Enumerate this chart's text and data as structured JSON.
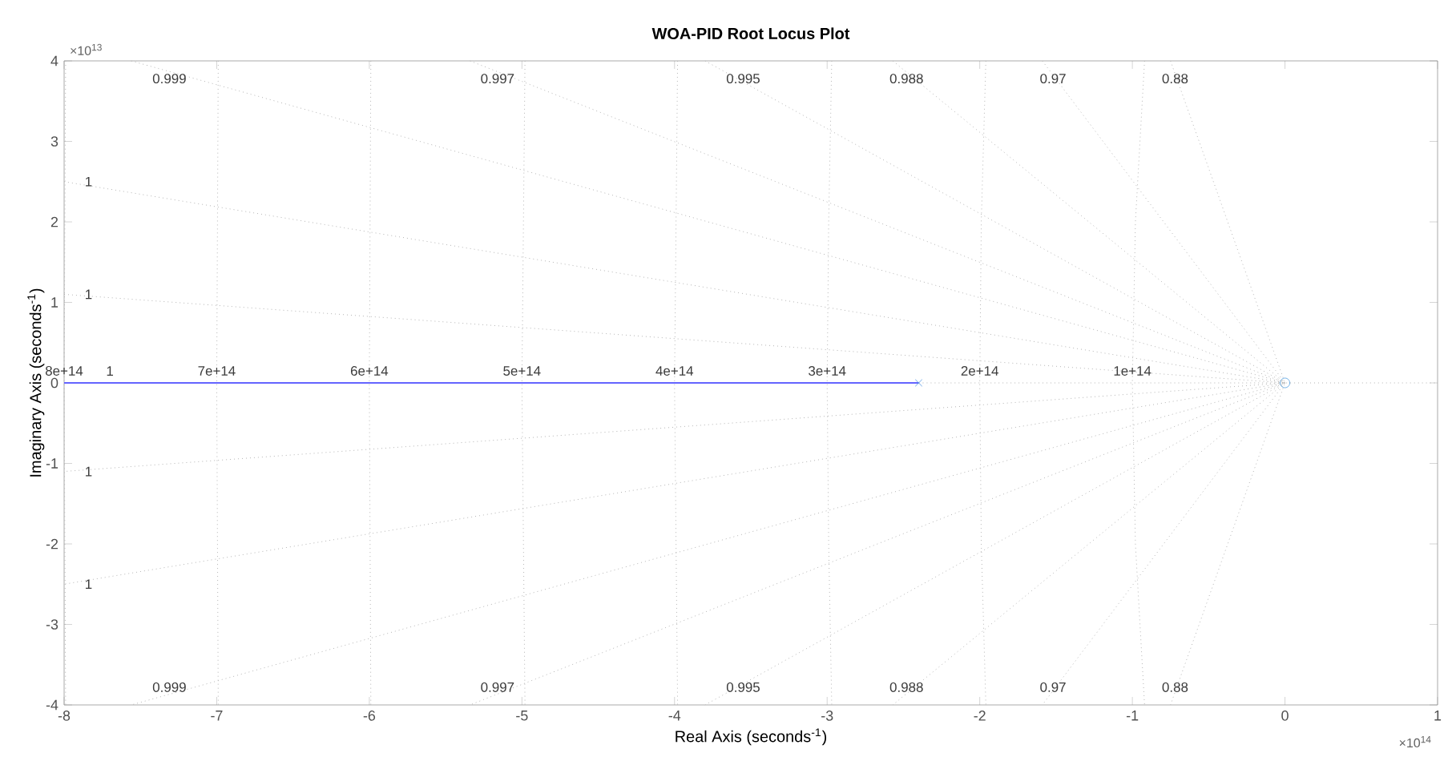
{
  "chart_data": {
    "type": "line",
    "title": "WOA-PID Root Locus Plot",
    "xlabel": "Real Axis (seconds$^{-1}$)",
    "ylabel": "Imaginary Axis (seconds$^{-1}$)",
    "xlim": [
      -8,
      1
    ],
    "ylim": [
      -4,
      4
    ],
    "xticks": [
      -8,
      -7,
      -6,
      -5,
      -4,
      -3,
      -2,
      -1,
      0,
      1
    ],
    "yticks": [
      -4,
      -3,
      -2,
      -1,
      0,
      1,
      2,
      3,
      4
    ],
    "series": [
      {
        "color": "#b4b4b4",
        "line_style": "dotted",
        "x": [
          -2.4,
          1
        ],
        "values": [
          0,
          0
        ]
      },
      {
        "color": "#b4b4b4",
        "line_style": "dotted",
        "x": [
          -7.56,
          0,
          -7.56
        ],
        "values": [
          4,
          0,
          -4
        ]
      },
      {
        "color": "#b4b4b4",
        "line_style": "dotted",
        "x": [
          -5.34,
          0,
          -5.34
        ],
        "values": [
          4,
          0,
          -4
        ]
      },
      {
        "color": "#b4b4b4",
        "line_style": "dotted",
        "x": [
          -3.8,
          0,
          -3.8
        ],
        "values": [
          4,
          0,
          -4
        ]
      },
      {
        "color": "#b4b4b4",
        "line_style": "dotted",
        "x": [
          -2.57,
          0,
          -2.57
        ],
        "values": [
          4,
          0,
          -4
        ]
      },
      {
        "color": "#b4b4b4",
        "line_style": "dotted",
        "x": [
          -1.59,
          0,
          -1.59
        ],
        "values": [
          4,
          0,
          -4
        ]
      },
      {
        "color": "#b4b4b4",
        "line_style": "dotted",
        "x": [
          -0.75,
          0,
          -0.75
        ],
        "values": [
          4,
          0,
          -4
        ]
      },
      {
        "color": "#b4b4b4",
        "line_style": "dotted",
        "x": [
          -8,
          0,
          -8
        ],
        "values": [
          2.5,
          0,
          -2.5
        ]
      },
      {
        "color": "#b4b4b4",
        "line_style": "dotted",
        "x": [
          -8,
          0,
          -8
        ],
        "values": [
          1.1,
          0,
          -1.1
        ]
      },
      {
        "color": "#b4b4b4",
        "line_style": "dotted",
        "x": [
          -0.92,
          -0.98,
          -1,
          -0.98,
          -0.92
        ],
        "values": [
          4,
          2,
          0,
          -2,
          -4
        ]
      },
      {
        "color": "#b4b4b4",
        "line_style": "dotted",
        "x": [
          -1.96,
          -1.99,
          -2,
          -1.99,
          -1.96
        ],
        "values": [
          4,
          2,
          0,
          -2,
          -4
        ]
      },
      {
        "color": "#b4b4b4",
        "line_style": "dotted",
        "x": [
          -2.97,
          -2.99,
          -3,
          -2.99,
          -2.97
        ],
        "values": [
          4,
          2,
          0,
          -2,
          -4
        ]
      },
      {
        "color": "#b4b4b4",
        "line_style": "dotted",
        "x": [
          -3.98,
          -4,
          -3.98
        ],
        "values": [
          4,
          0,
          -4
        ]
      },
      {
        "color": "#b4b4b4",
        "line_style": "dotted",
        "x": [
          -4.98,
          -5,
          -4.98
        ],
        "values": [
          4,
          0,
          -4
        ]
      },
      {
        "color": "#b4b4b4",
        "line_style": "dotted",
        "x": [
          -5.99,
          -6,
          -5.99
        ],
        "values": [
          4,
          0,
          -4
        ]
      },
      {
        "color": "#b4b4b4",
        "line_style": "dotted",
        "x": [
          -6.99,
          -7,
          -6.99
        ],
        "values": [
          4,
          0,
          -4
        ]
      },
      {
        "color": "#b4b4b4",
        "line_style": "dotted",
        "x": [
          -7.99,
          -8,
          -7.99
        ],
        "values": [
          4,
          0,
          -4
        ]
      },
      {
        "color": "#6464ff",
        "line_style": "solid",
        "x": [
          -8,
          -2.4
        ],
        "values": [
          0,
          0
        ]
      },
      {
        "type": "scatter",
        "marker": "cross",
        "color": "#4a90e2",
        "x": [
          -2.4
        ],
        "values": [
          0
        ]
      },
      {
        "type": "scatter",
        "marker": "circle",
        "color": "#4a9be0",
        "x": [
          0
        ],
        "values": [
          0
        ]
      }
    ],
    "annotations": [
      {
        "text": "0.999",
        "x": -7.31,
        "y": 3.78
      },
      {
        "text": "0.997",
        "x": -5.16,
        "y": 3.78
      },
      {
        "text": "0.995",
        "x": -3.55,
        "y": 3.78
      },
      {
        "text": "0.988",
        "x": -2.48,
        "y": 3.78
      },
      {
        "text": "0.97",
        "x": -1.52,
        "y": 3.78
      },
      {
        "text": "0.88",
        "x": -0.72,
        "y": 3.78
      },
      {
        "text": "0.999",
        "x": -7.31,
        "y": -3.78
      },
      {
        "text": "0.997",
        "x": -5.16,
        "y": -3.78
      },
      {
        "text": "0.995",
        "x": -3.55,
        "y": -3.78
      },
      {
        "text": "0.988",
        "x": -2.48,
        "y": -3.78
      },
      {
        "text": "0.97",
        "x": -1.52,
        "y": -3.78
      },
      {
        "text": "0.88",
        "x": -0.72,
        "y": -3.78
      },
      {
        "text": "1",
        "x": -7.84,
        "y": 2.5
      },
      {
        "text": "1",
        "x": -7.84,
        "y": 1.1
      },
      {
        "text": "1",
        "x": -7.7,
        "y": 0
      },
      {
        "text": "1",
        "x": -7.84,
        "y": -1.1
      },
      {
        "text": "1",
        "x": -7.84,
        "y": -2.5
      },
      {
        "text": "8e+14",
        "x": -8,
        "y": 0
      },
      {
        "text": "7e+14",
        "x": -7,
        "y": 0
      },
      {
        "text": "6e+14",
        "x": -6,
        "y": 0
      },
      {
        "text": "5e+14",
        "x": -5,
        "y": 0
      },
      {
        "text": "4e+14",
        "x": -4,
        "y": 0
      },
      {
        "text": "3e+14",
        "x": -3,
        "y": 0
      },
      {
        "text": "2e+14",
        "x": -2,
        "y": 0
      },
      {
        "text": "1e+14",
        "x": -1,
        "y": 0
      },
      "×10$^{13}$",
      "×10$^{14}$"
    ]
  }
}
